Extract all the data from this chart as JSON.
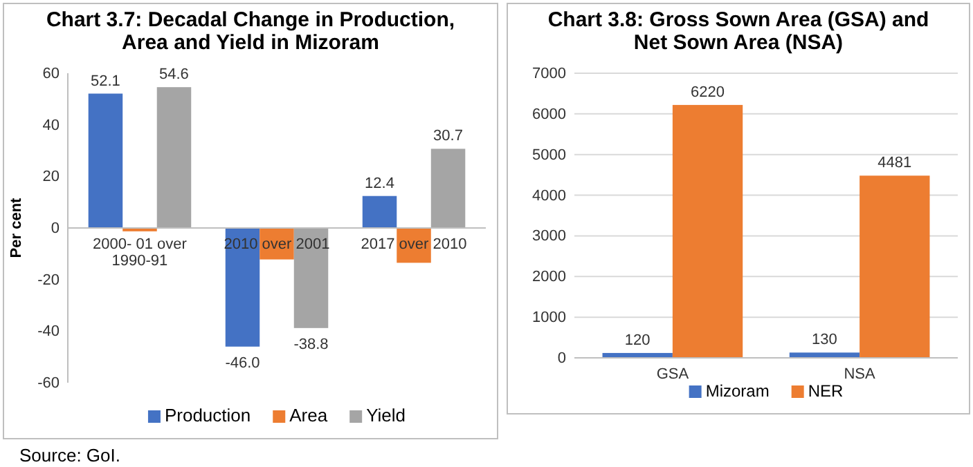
{
  "chart_data": [
    {
      "type": "bar",
      "title": "Chart 3.7: Decadal Change in Production, Area and Yield in Mizoram",
      "ylabel": "Per cent",
      "categories": [
        "2000- 01 over 1990-91",
        "2010 over 2001",
        "2017 over 2010"
      ],
      "series": [
        {
          "name": "Production",
          "color": "#4472c4",
          "values": [
            52.1,
            -46.0,
            12.4
          ],
          "value_labels": [
            "52.1",
            "-46.0",
            "12.4"
          ]
        },
        {
          "name": "Area",
          "color": "#ed7d31",
          "values": [
            -1.3,
            -12.2,
            -13.5
          ],
          "value_labels": [
            null,
            null,
            null
          ]
        },
        {
          "name": "Yield",
          "color": "#a5a5a5",
          "values": [
            54.6,
            -38.8,
            30.7
          ],
          "value_labels": [
            "54.6",
            "-38.8",
            "30.7"
          ]
        }
      ],
      "ylim": [
        -60,
        60
      ],
      "yticks": [
        -60,
        -40,
        -20,
        0,
        20,
        40,
        60
      ],
      "grid": false,
      "legend": "bottom",
      "annotations": [
        "Source: GoI."
      ]
    },
    {
      "type": "bar",
      "title": "Chart 3.8: Gross Sown Area (GSA) and Net Sown Area (NSA)",
      "categories": [
        "GSA",
        "NSA"
      ],
      "series": [
        {
          "name": "Mizoram",
          "color": "#4472c4",
          "values": [
            120,
            130
          ]
        },
        {
          "name": "NER",
          "color": "#ed7d31",
          "values": [
            6220,
            4481
          ]
        }
      ],
      "ylim": [
        0,
        7000
      ],
      "yticks": [
        0,
        1000,
        2000,
        3000,
        4000,
        5000,
        6000,
        7000
      ],
      "grid": "y",
      "legend": "bottom",
      "data_labels": true
    }
  ]
}
